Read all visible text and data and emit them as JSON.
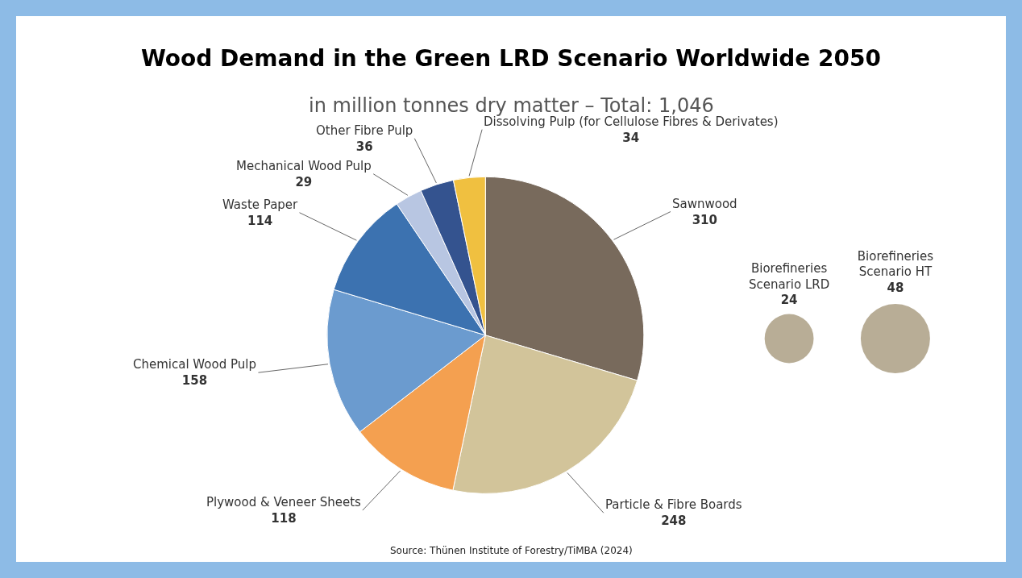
{
  "chart_data": [
    {
      "type": "pie",
      "title": "Wood Demand in the Green LRD Scenario Worldwide 2050",
      "subtitle": "in million tonnes dry matter – Total: 1,046",
      "categories": [
        "Sawnwood",
        "Particle & Fibre Boards",
        "Plywood & Veneer Sheets",
        "Chemical Wood Pulp",
        "Waste Paper",
        "Mechanical Wood Pulp",
        "Other Fibre Pulp",
        "Dissolving Pulp (for Cellulose Fibres & Derivates)"
      ],
      "values": [
        310,
        248,
        118,
        158,
        114,
        29,
        36,
        34
      ],
      "colors": [
        "#786a5c",
        "#d2c49a",
        "#f4a050",
        "#6b9bcf",
        "#3c72b0",
        "#b8c6e2",
        "#34538f",
        "#f0c040"
      ],
      "data_labels": true,
      "legend": false,
      "annotations": [
        "Source: Thünen Institute of Forestry/TiMBA (2024)"
      ]
    },
    {
      "type": "other",
      "categories": [
        "Biorefineries\nScenario LRD",
        "Biorefineries\nScenario HT"
      ],
      "values": [
        24,
        48
      ],
      "colors": [
        "#9a8a6a",
        "#9a8a6a"
      ],
      "data_labels": true
    }
  ]
}
